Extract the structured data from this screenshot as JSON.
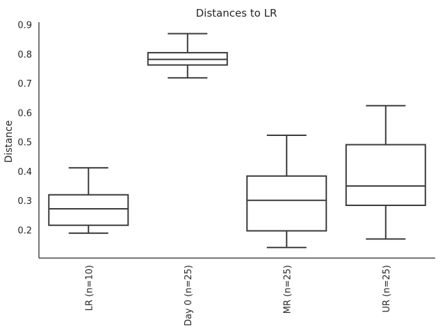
{
  "chart_data": {
    "type": "box",
    "title": "Distances to LR",
    "xlabel": "",
    "ylabel": "Distance",
    "ylim": [
      0.105,
      0.91
    ],
    "yticks": [
      "0.2",
      "0.3",
      "0.4",
      "0.5",
      "0.6",
      "0.7",
      "0.8",
      "0.9"
    ],
    "grid": false,
    "categories": [
      "LR (n=10)",
      "Day 0 (n=25)",
      "MR (n=25)",
      "UR (n=25)"
    ],
    "boxes": [
      {
        "category": "LR (n=10)",
        "whisker_low": 0.19,
        "q1": 0.217,
        "median": 0.273,
        "q3": 0.321,
        "whisker_high": 0.413
      },
      {
        "category": "Day 0 (n=25)",
        "whisker_low": 0.72,
        "q1": 0.764,
        "median": 0.783,
        "q3": 0.806,
        "whisker_high": 0.871
      },
      {
        "category": "MR (n=25)",
        "whisker_low": 0.141,
        "q1": 0.198,
        "median": 0.302,
        "q3": 0.385,
        "whisker_high": 0.524
      },
      {
        "category": "UR (n=25)",
        "whisker_low": 0.17,
        "q1": 0.285,
        "median": 0.351,
        "q3": 0.492,
        "whisker_high": 0.625
      }
    ],
    "colors": {
      "box_edge": "#3a3a3a",
      "box_fill": "#ffffff",
      "axis": "#262626"
    }
  }
}
